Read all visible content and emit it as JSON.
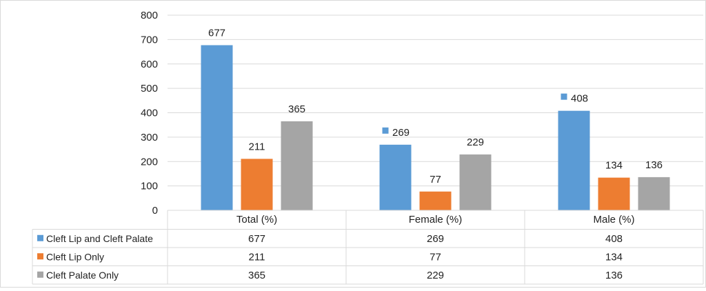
{
  "chart_data": {
    "type": "bar",
    "categories": [
      "Total (%)",
      "Female (%)",
      "Male (%)"
    ],
    "series": [
      {
        "name": "Cleft Lip and Cleft Palate",
        "color": "#5B9BD5",
        "values": [
          677,
          269,
          408
        ]
      },
      {
        "name": "Cleft Lip Only",
        "color": "#ED7D31",
        "values": [
          211,
          77,
          134
        ]
      },
      {
        "name": "Cleft Palate Only",
        "color": "#A5A5A5",
        "values": [
          365,
          229,
          136
        ]
      }
    ],
    "ylim": [
      0,
      800
    ],
    "yticks": [
      "0",
      "100",
      "200",
      "300",
      "400",
      "500",
      "600",
      "700",
      "800"
    ],
    "grid": true,
    "data_table": true
  }
}
